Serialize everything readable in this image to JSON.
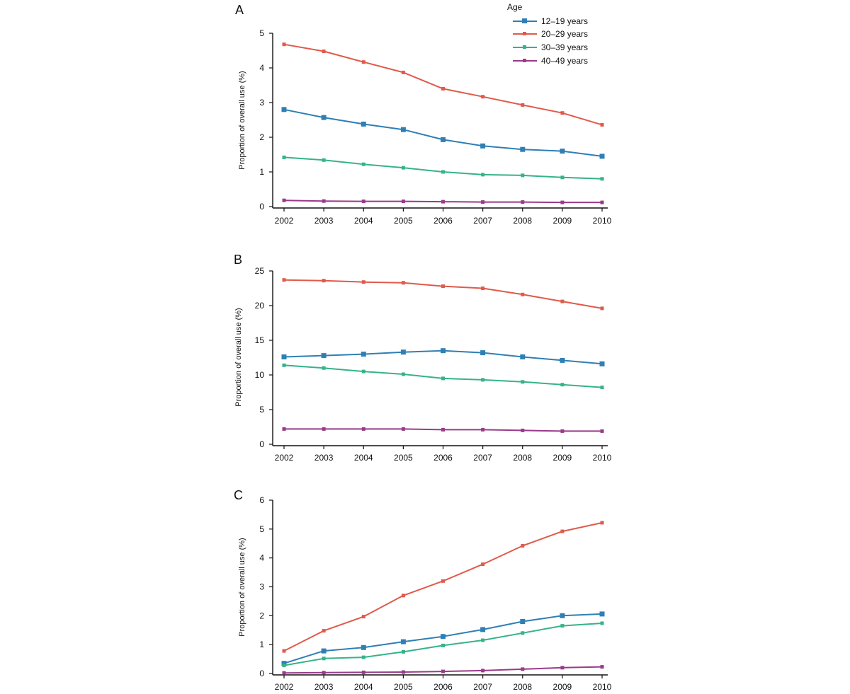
{
  "colors": {
    "axis": "#111111",
    "series": [
      "#2f7fb5",
      "#e05a4a",
      "#35b38a",
      "#9a3a8a"
    ]
  },
  "legend": {
    "title": "Age",
    "entries": [
      "12–19 years",
      "20–29 years",
      "30–39 years",
      "40–49 years"
    ]
  },
  "chart_data": [
    {
      "type": "line",
      "panel": "A",
      "title": "",
      "xlabel": "",
      "ylabel": "Proportion of overall use (%)",
      "categories": [
        "2002",
        "2003",
        "2004",
        "2005",
        "2006",
        "2007",
        "2008",
        "2009",
        "2010"
      ],
      "ylim": [
        0,
        5
      ],
      "yticks": [
        "0",
        "1",
        "2",
        "3",
        "4",
        "5"
      ],
      "series": [
        {
          "name": "12–19 years",
          "values": [
            2.8,
            2.57,
            2.38,
            2.22,
            1.93,
            1.75,
            1.65,
            1.6,
            1.45
          ]
        },
        {
          "name": "20–29 years",
          "values": [
            4.68,
            4.48,
            4.17,
            3.87,
            3.4,
            3.17,
            2.93,
            2.7,
            2.36
          ]
        },
        {
          "name": "30–39 years",
          "values": [
            1.42,
            1.34,
            1.22,
            1.12,
            1.0,
            0.92,
            0.9,
            0.84,
            0.8
          ]
        },
        {
          "name": "40–49 years",
          "values": [
            0.18,
            0.16,
            0.15,
            0.15,
            0.14,
            0.13,
            0.13,
            0.12,
            0.12
          ]
        }
      ]
    },
    {
      "type": "line",
      "panel": "B",
      "title": "",
      "xlabel": "",
      "ylabel": "Proportion of overall use (%)",
      "categories": [
        "2002",
        "2003",
        "2004",
        "2005",
        "2006",
        "2007",
        "2008",
        "2009",
        "2010"
      ],
      "ylim": [
        0,
        25
      ],
      "yticks": [
        "0",
        "5",
        "10",
        "15",
        "20",
        "25"
      ],
      "series": [
        {
          "name": "12–19 years",
          "values": [
            12.6,
            12.8,
            13.0,
            13.3,
            13.5,
            13.2,
            12.6,
            12.1,
            11.6
          ]
        },
        {
          "name": "20–29 years",
          "values": [
            23.7,
            23.6,
            23.4,
            23.3,
            22.8,
            22.5,
            21.6,
            20.6,
            19.6
          ]
        },
        {
          "name": "30–39 years",
          "values": [
            11.4,
            11.0,
            10.5,
            10.1,
            9.5,
            9.3,
            9.0,
            8.6,
            8.2
          ]
        },
        {
          "name": "40–49 years",
          "values": [
            2.2,
            2.2,
            2.2,
            2.2,
            2.1,
            2.1,
            2.0,
            1.9,
            1.9
          ]
        }
      ]
    },
    {
      "type": "line",
      "panel": "C",
      "title": "",
      "xlabel": "",
      "ylabel": "Proportion of overall use (%)",
      "categories": [
        "2002",
        "2003",
        "2004",
        "2005",
        "2006",
        "2007",
        "2008",
        "2009",
        "2010"
      ],
      "ylim": [
        0,
        6
      ],
      "yticks": [
        "0",
        "1",
        "2",
        "3",
        "4",
        "5",
        "6"
      ],
      "series": [
        {
          "name": "12–19 years",
          "values": [
            0.35,
            0.78,
            0.9,
            1.1,
            1.28,
            1.52,
            1.8,
            2.0,
            2.06
          ]
        },
        {
          "name": "20–29 years",
          "values": [
            0.78,
            1.48,
            1.97,
            2.7,
            3.2,
            3.78,
            4.42,
            4.92,
            5.22
          ]
        },
        {
          "name": "30–39 years",
          "values": [
            0.28,
            0.52,
            0.56,
            0.75,
            0.97,
            1.15,
            1.4,
            1.65,
            1.74
          ]
        },
        {
          "name": "40–49 years",
          "values": [
            0.02,
            0.03,
            0.04,
            0.05,
            0.07,
            0.1,
            0.15,
            0.2,
            0.23
          ]
        }
      ]
    }
  ]
}
